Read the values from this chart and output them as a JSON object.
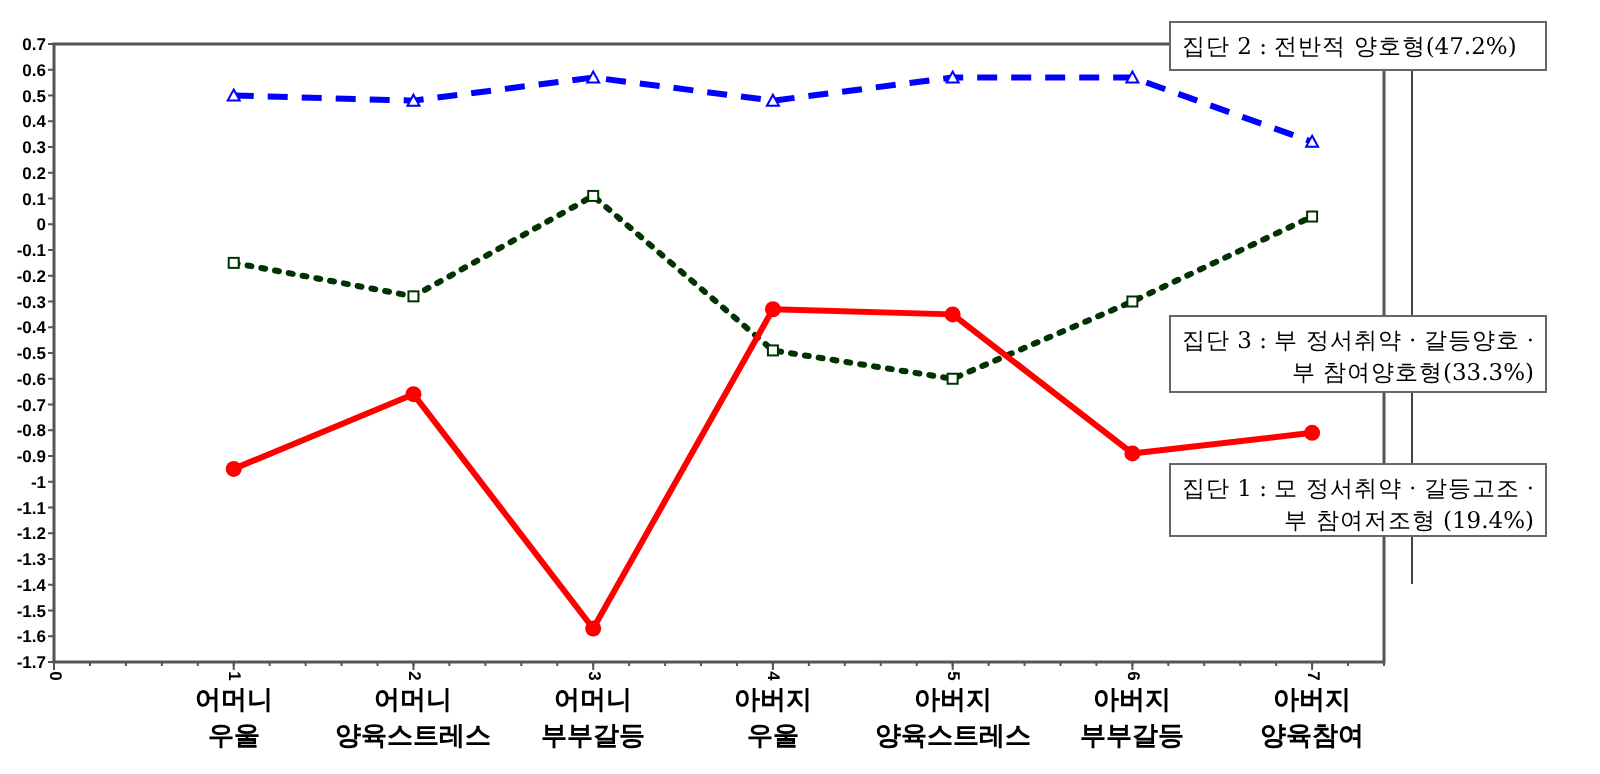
{
  "chart_data": {
    "type": "line",
    "x": [
      1,
      2,
      3,
      4,
      5,
      6,
      7
    ],
    "annotations": [
      "어머니\n우울",
      "어머니\n양육스트레스",
      "어머니\n부부갈등",
      "아버지\n우울",
      "아버지\n양육스트레스",
      "아버지\n부부갈등",
      "아버지\n양육참여"
    ],
    "xlim": [
      0,
      7.4
    ],
    "xticks": [
      0,
      1,
      2,
      3,
      4,
      5,
      6,
      7
    ],
    "ylim": [
      -1.7,
      0.7
    ],
    "yticks": [
      -1.7,
      -1.6,
      -1.5,
      -1.4,
      -1.3,
      -1.2,
      -1.1,
      -1,
      -0.9,
      -0.8,
      -0.7,
      -0.6,
      -0.5,
      -0.4,
      -0.3,
      -0.2,
      -0.1,
      0,
      0.1,
      0.2,
      0.3,
      0.4,
      0.5,
      0.6,
      0.7
    ],
    "grid": false,
    "legend": "right",
    "series": [
      {
        "name": "집단 2 : 전반적 양호형(47.2%)",
        "color": "#0000ff",
        "line_style": "dashed",
        "marker": "triangle",
        "values": [
          0.5,
          0.48,
          0.57,
          0.48,
          0.57,
          0.57,
          0.32
        ]
      },
      {
        "name": "집단 3 : 부 정서취약 · 갈등양호 ·\n부 참여양호형(33.3%)",
        "color": "#003300",
        "line_style": "dotted",
        "marker": "square",
        "values": [
          -0.15,
          -0.28,
          0.11,
          -0.49,
          -0.6,
          -0.3,
          0.03
        ]
      },
      {
        "name": "집단 1 : 모 정서취약 · 갈등고조 ·\n부 참여저조형 (19.4%)",
        "color": "#ff0000",
        "line_style": "solid",
        "marker": "circle",
        "values": [
          -0.95,
          -0.66,
          -1.57,
          -0.33,
          -0.35,
          -0.89,
          -0.81
        ]
      }
    ]
  }
}
